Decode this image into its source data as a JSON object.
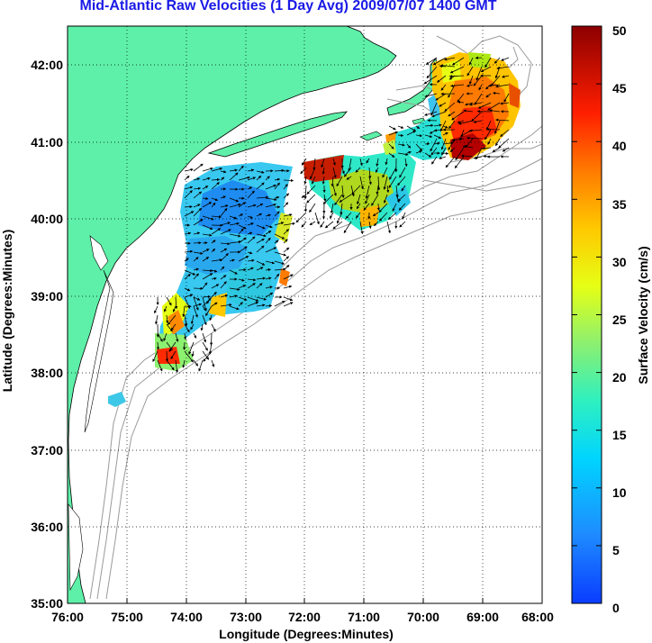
{
  "title": "Mid-Atlantic Raw Velocities (1 Day Avg) 2009/07/07 1400 GMT",
  "map": {
    "xlabel": "Longitude (Degrees:Minutes)",
    "ylabel": "Latitude (Degrees:Minutes)",
    "lon_range": [
      -76,
      -68
    ],
    "lat_range": [
      35,
      42.5
    ],
    "x_ticks": [
      "76:00",
      "75:00",
      "74:00",
      "73:00",
      "72:00",
      "71:00",
      "70:00",
      "69:00",
      "68:00"
    ],
    "y_ticks": [
      "35:00",
      "36:00",
      "37:00",
      "38:00",
      "39:00",
      "40:00",
      "41:00",
      "42:00"
    ],
    "land_color": "#5ef0a8",
    "grid": "dotted"
  },
  "colorbar": {
    "label": "Surface Velocity (cm/s)",
    "range": [
      0,
      50
    ],
    "ticks": [
      "0",
      "5",
      "10",
      "15",
      "20",
      "25",
      "30",
      "35",
      "40",
      "45",
      "50"
    ],
    "colormap": "jet"
  }
}
